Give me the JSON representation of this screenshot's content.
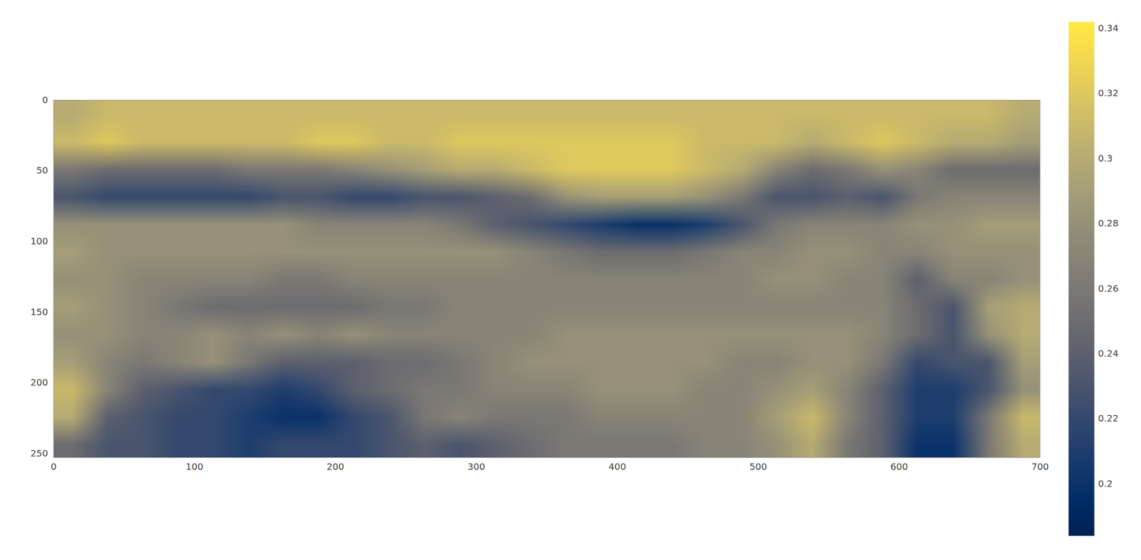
{
  "chart_data": {
    "type": "heatmap",
    "color": "cividis",
    "xlim": [
      0,
      700
    ],
    "xticks": [
      0,
      100,
      200,
      300,
      400,
      500,
      600,
      700
    ],
    "ylim": [
      253,
      0
    ],
    "yticks": [
      0,
      50,
      100,
      150,
      200,
      250
    ],
    "cells": [
      [
        0.3,
        0.31,
        0.31,
        0.31,
        0.31,
        0.31,
        0.31,
        0.31,
        0.31,
        0.31,
        0.31,
        0.31,
        0.31,
        0.31,
        0.31,
        0.31,
        0.31,
        0.31,
        0.31,
        0.31,
        0.31,
        0.31,
        0.31,
        0.31,
        0.31,
        0.31,
        0.31,
        0.3
      ],
      [
        0.31,
        0.32,
        0.31,
        0.31,
        0.31,
        0.31,
        0.31,
        0.32,
        0.32,
        0.31,
        0.31,
        0.32,
        0.32,
        0.32,
        0.32,
        0.32,
        0.32,
        0.32,
        0.31,
        0.31,
        0.31,
        0.3,
        0.31,
        0.32,
        0.31,
        0.3,
        0.3,
        0.29
      ],
      [
        0.26,
        0.25,
        0.25,
        0.25,
        0.25,
        0.26,
        0.26,
        0.26,
        0.27,
        0.28,
        0.29,
        0.3,
        0.3,
        0.31,
        0.32,
        0.32,
        0.32,
        0.32,
        0.31,
        0.3,
        0.27,
        0.25,
        0.26,
        0.28,
        0.27,
        0.25,
        0.25,
        0.25
      ],
      [
        0.23,
        0.22,
        0.22,
        0.22,
        0.22,
        0.22,
        0.23,
        0.23,
        0.22,
        0.22,
        0.23,
        0.23,
        0.24,
        0.25,
        0.28,
        0.29,
        0.29,
        0.29,
        0.28,
        0.26,
        0.23,
        0.23,
        0.24,
        0.23,
        0.26,
        0.27,
        0.27,
        0.27
      ],
      [
        0.28,
        0.28,
        0.28,
        0.28,
        0.28,
        0.28,
        0.28,
        0.27,
        0.27,
        0.27,
        0.27,
        0.26,
        0.24,
        0.23,
        0.22,
        0.21,
        0.2,
        0.2,
        0.21,
        0.23,
        0.26,
        0.27,
        0.27,
        0.27,
        0.28,
        0.28,
        0.29,
        0.29
      ],
      [
        0.29,
        0.28,
        0.28,
        0.28,
        0.28,
        0.28,
        0.28,
        0.28,
        0.28,
        0.28,
        0.28,
        0.28,
        0.28,
        0.27,
        0.26,
        0.25,
        0.25,
        0.25,
        0.26,
        0.27,
        0.27,
        0.28,
        0.28,
        0.27,
        0.27,
        0.28,
        0.28,
        0.28
      ],
      [
        0.28,
        0.28,
        0.27,
        0.27,
        0.27,
        0.27,
        0.26,
        0.26,
        0.27,
        0.27,
        0.27,
        0.27,
        0.27,
        0.27,
        0.27,
        0.27,
        0.27,
        0.27,
        0.27,
        0.27,
        0.28,
        0.28,
        0.27,
        0.27,
        0.24,
        0.27,
        0.27,
        0.28
      ],
      [
        0.29,
        0.28,
        0.27,
        0.26,
        0.25,
        0.25,
        0.25,
        0.25,
        0.25,
        0.26,
        0.26,
        0.27,
        0.27,
        0.27,
        0.27,
        0.27,
        0.27,
        0.27,
        0.27,
        0.27,
        0.27,
        0.27,
        0.27,
        0.27,
        0.25,
        0.23,
        0.29,
        0.3
      ],
      [
        0.28,
        0.28,
        0.27,
        0.27,
        0.28,
        0.27,
        0.28,
        0.27,
        0.28,
        0.27,
        0.27,
        0.27,
        0.27,
        0.27,
        0.28,
        0.28,
        0.28,
        0.28,
        0.28,
        0.28,
        0.28,
        0.28,
        0.28,
        0.27,
        0.25,
        0.23,
        0.28,
        0.3
      ],
      [
        0.29,
        0.27,
        0.26,
        0.27,
        0.28,
        0.26,
        0.24,
        0.24,
        0.24,
        0.25,
        0.25,
        0.26,
        0.27,
        0.28,
        0.28,
        0.28,
        0.28,
        0.28,
        0.28,
        0.27,
        0.27,
        0.28,
        0.28,
        0.26,
        0.22,
        0.23,
        0.23,
        0.29
      ],
      [
        0.31,
        0.27,
        0.24,
        0.23,
        0.22,
        0.22,
        0.21,
        0.22,
        0.24,
        0.25,
        0.26,
        0.26,
        0.27,
        0.27,
        0.27,
        0.28,
        0.28,
        0.28,
        0.27,
        0.27,
        0.28,
        0.29,
        0.27,
        0.24,
        0.21,
        0.21,
        0.23,
        0.28
      ],
      [
        0.3,
        0.24,
        0.23,
        0.22,
        0.22,
        0.21,
        0.2,
        0.2,
        0.22,
        0.23,
        0.26,
        0.27,
        0.26,
        0.26,
        0.26,
        0.27,
        0.27,
        0.27,
        0.27,
        0.27,
        0.29,
        0.31,
        0.27,
        0.24,
        0.21,
        0.21,
        0.26,
        0.31
      ],
      [
        0.25,
        0.23,
        0.23,
        0.22,
        0.22,
        0.21,
        0.22,
        0.22,
        0.22,
        0.23,
        0.24,
        0.23,
        0.24,
        0.25,
        0.26,
        0.26,
        0.26,
        0.26,
        0.27,
        0.27,
        0.28,
        0.3,
        0.26,
        0.24,
        0.2,
        0.2,
        0.26,
        0.3
      ]
    ],
    "colorbar": {
      "range": [
        0.184,
        0.342
      ],
      "ticks": [
        0.2,
        0.22,
        0.24,
        0.26,
        0.28,
        0.3,
        0.32,
        0.34
      ]
    }
  }
}
